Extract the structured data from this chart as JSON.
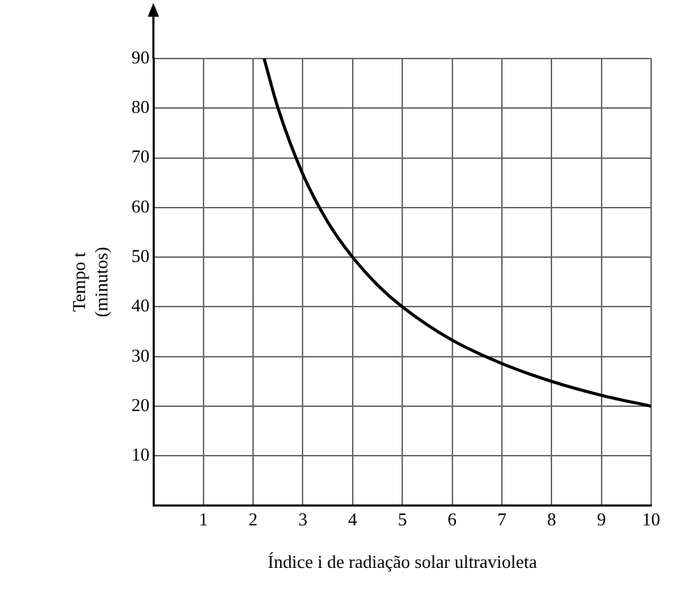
{
  "chart_data": {
    "type": "line",
    "xlabel": "Índice i de radiação solar ultravioleta",
    "ylabel": "Tempo t\n(minutos)",
    "x": [
      2.22,
      2.5,
      3,
      3.5,
      4,
      4.5,
      5,
      6,
      7,
      8,
      9,
      10
    ],
    "series": [
      {
        "color": "#000000",
        "values": [
          90,
          80,
          66.7,
          57.1,
          50,
          44.4,
          40,
          33.3,
          28.6,
          25,
          22.2,
          20
        ]
      }
    ],
    "xlim": [
      0,
      10
    ],
    "xticks": [
      {
        "value": 0,
        "label": null
      },
      1,
      2,
      3,
      4,
      5,
      6,
      7,
      8,
      9,
      10
    ],
    "ylim": [
      0,
      90
    ],
    "yticks": [
      {
        "value": 0,
        "label": null
      },
      10,
      20,
      30,
      40,
      50,
      60,
      70,
      80,
      90
    ],
    "grid": true,
    "legend": false,
    "marker": "none",
    "line_style": "solid"
  }
}
